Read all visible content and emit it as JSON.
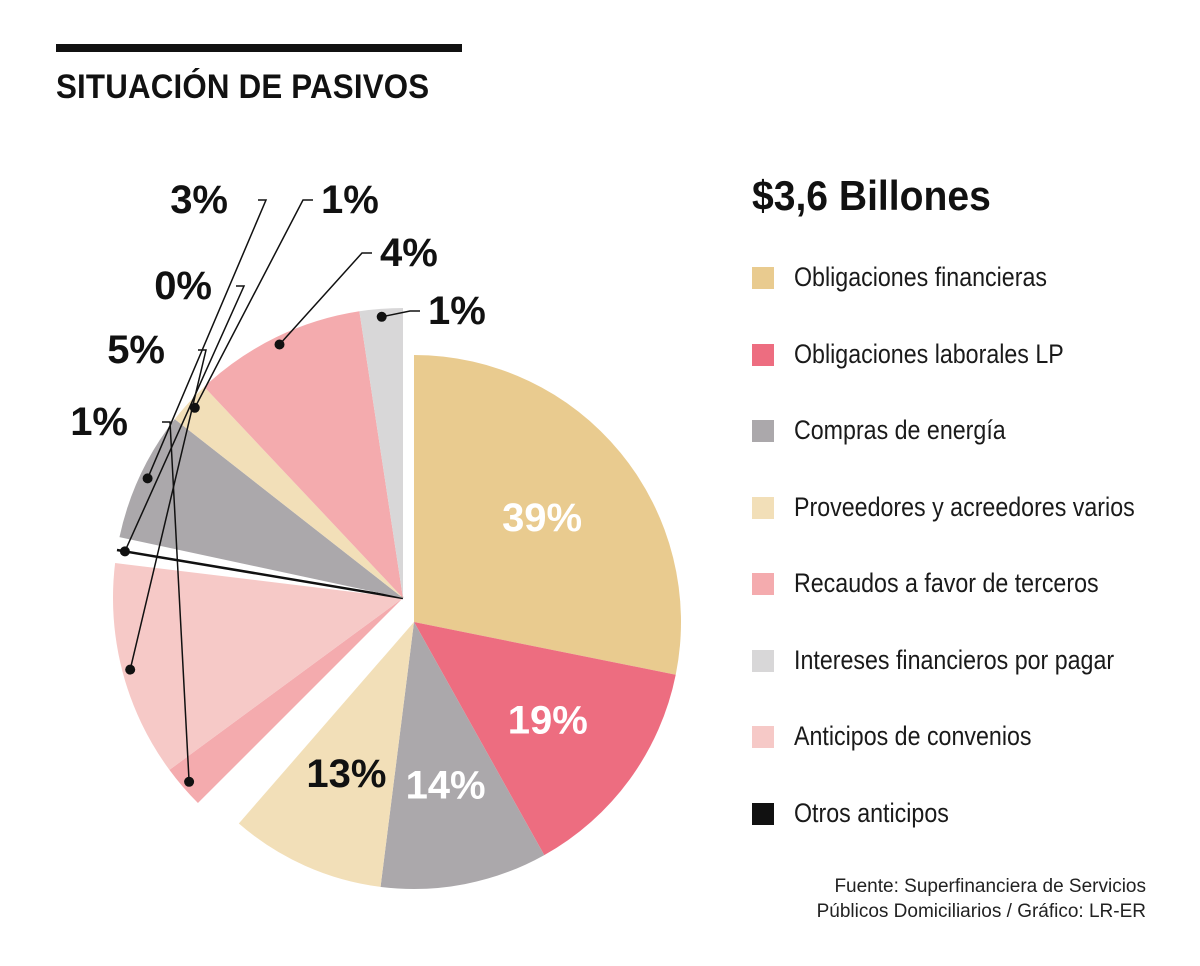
{
  "title": "SITUACIÓN DE PASIVOS",
  "total_label": "$3,6 Billones",
  "source": {
    "line1": "Fuente: Superfinanciera de Servicios",
    "line2": "Públicos Domiciliarios / Gráfico: LR-ER"
  },
  "chart_data": {
    "type": "pie",
    "title": "SITUACIÓN DE PASIVOS",
    "total": "$3,6 Billones",
    "legend_position": "right",
    "slices": [
      {
        "name": "Obligaciones financieras",
        "value": 39,
        "label": "39%",
        "color": "#E9CB8F",
        "label_color": "#ffffff",
        "exploded": false,
        "callout": false
      },
      {
        "name": "Obligaciones laborales LP",
        "value": 19,
        "label": "19%",
        "color": "#ED6D80",
        "label_color": "#ffffff",
        "exploded": false,
        "callout": false
      },
      {
        "name": "Compras de energía",
        "value": 14,
        "label": "14%",
        "color": "#ABA8AB",
        "label_color": "#ffffff",
        "exploded": false,
        "callout": false
      },
      {
        "name": "Proveedores y acreedores varios",
        "value": 13,
        "label": "13%",
        "color": "#F2DFB8",
        "label_color": "#111111",
        "exploded": false,
        "callout": false
      },
      {
        "name": "Recaudos a favor de terceros",
        "value": 1,
        "label": "1%",
        "color": "#F4ABAE",
        "label_color": "#111111",
        "exploded": true,
        "callout": true
      },
      {
        "name": "Anticipos de convenios",
        "value": 5,
        "label": "5%",
        "color": "#F6C9C7",
        "label_color": "#111111",
        "exploded": true,
        "callout": true
      },
      {
        "name": "Otros anticipos",
        "value": 0,
        "label": "0%",
        "color": "#111111",
        "label_color": "#111111",
        "exploded": true,
        "callout": true
      },
      {
        "name": "Compras de energía",
        "value": 3,
        "label": "3%",
        "color": "#ABA8AB",
        "label_color": "#111111",
        "exploded": true,
        "callout": true
      },
      {
        "name": "Proveedores y acreedores varios",
        "value": 1,
        "label": "1%",
        "color": "#F2DFB8",
        "label_color": "#111111",
        "exploded": true,
        "callout": true
      },
      {
        "name": "Recaudos a favor de terceros",
        "value": 4,
        "label": "4%",
        "color": "#F4ABAE",
        "label_color": "#111111",
        "exploded": true,
        "callout": true
      },
      {
        "name": "Intereses financieros por pagar",
        "value": 1,
        "label": "1%",
        "color": "#D8D7D8",
        "label_color": "#111111",
        "exploded": true,
        "callout": true
      }
    ],
    "legend": [
      {
        "label": "Obligaciones financieras",
        "color": "#E9CB8F"
      },
      {
        "label": "Obligaciones laborales LP",
        "color": "#ED6D80"
      },
      {
        "label": "Compras de energía",
        "color": "#ABA8AB"
      },
      {
        "label": "Proveedores y acreedores varios",
        "color": "#F2DFB8"
      },
      {
        "label": "Recaudos a favor de terceros",
        "color": "#F4ABAE"
      },
      {
        "label": "Intereses financieros por pagar",
        "color": "#D8D7D8"
      },
      {
        "label": "Anticipos de convenios",
        "color": "#F6C9C7"
      },
      {
        "label": "Otros anticipos",
        "color": "#111111"
      }
    ]
  }
}
